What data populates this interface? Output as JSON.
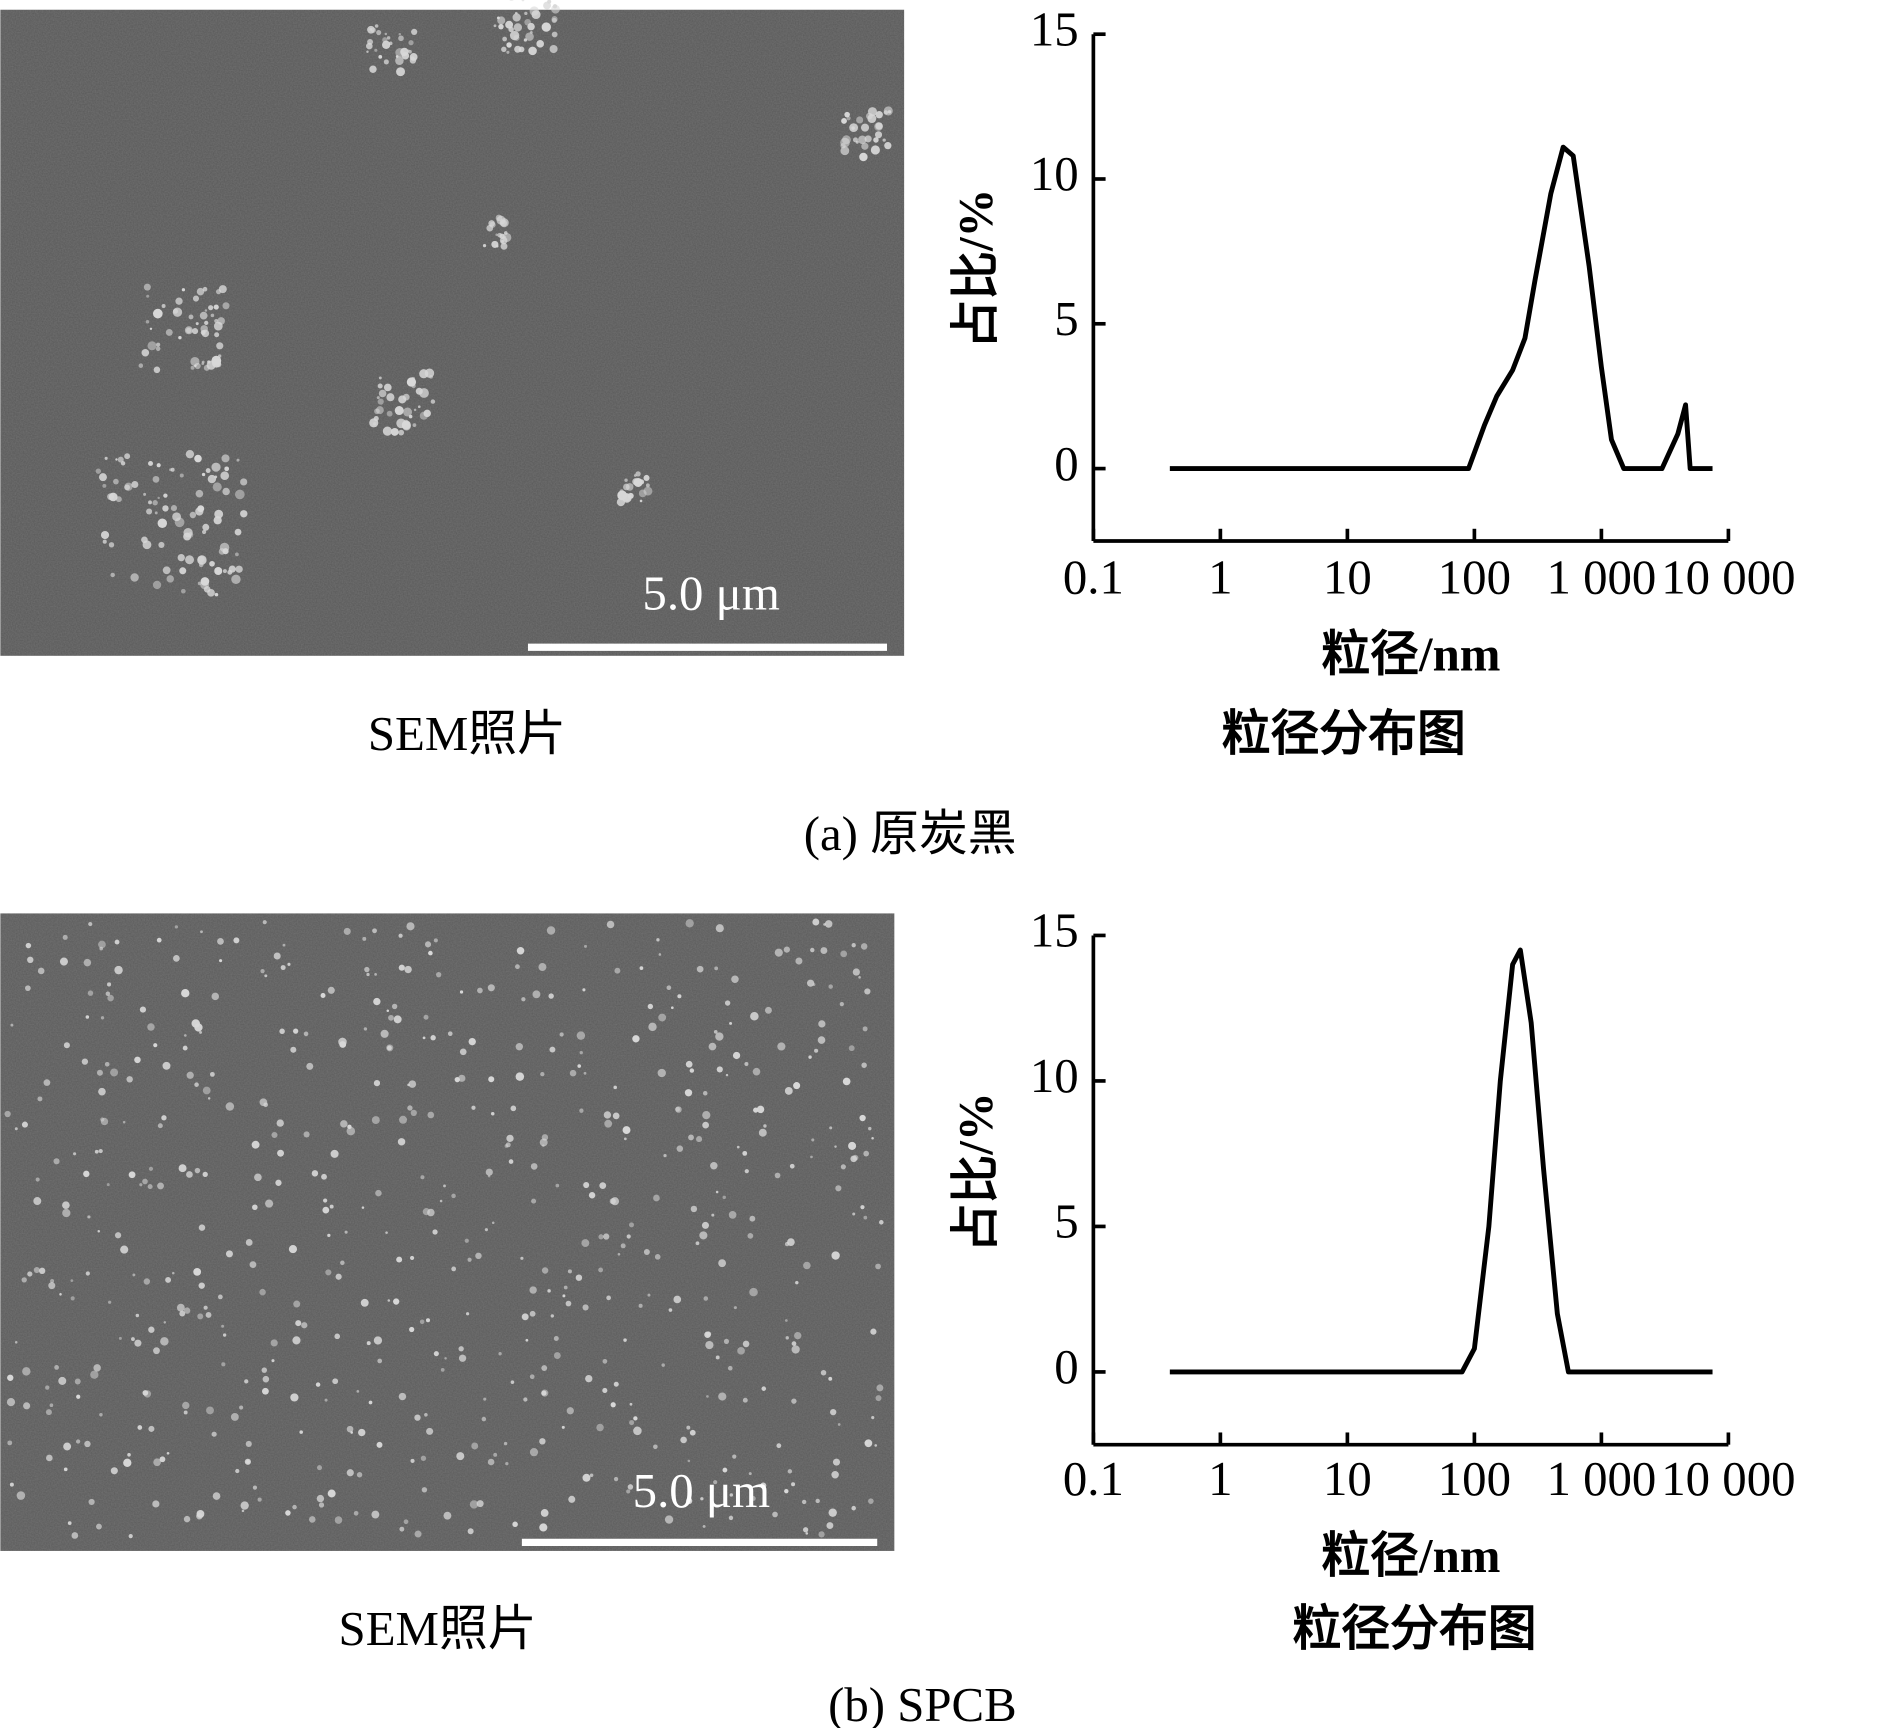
{
  "panels": [
    {
      "photo_caption": "SEM照片",
      "scale_bar": "5.0 μm",
      "chart_caption": "粒径分布图",
      "caption": "(a) 原炭黑"
    },
    {
      "photo_caption": "SEM照片",
      "scale_bar": "5.0 μm",
      "chart_caption": "粒径分布图",
      "caption": "(b) SPCB"
    }
  ],
  "chart_data": [
    {
      "type": "line",
      "x_label": "粒径/nm",
      "y_label": "占比/%",
      "x_scale": "log",
      "color": "#000000",
      "x": [
        0.4,
        90,
        120,
        150,
        200,
        250,
        300,
        400,
        500,
        600,
        800,
        1000,
        1200,
        1500,
        3000,
        4000,
        4600,
        5000,
        7500
      ],
      "values": [
        0,
        0,
        1.5,
        2.5,
        3.4,
        4.5,
        6.5,
        9.5,
        11.1,
        10.8,
        7,
        3.5,
        1,
        0,
        0,
        1.2,
        2.2,
        0,
        0
      ],
      "xlim": [
        0.1,
        10000
      ],
      "xticks": [
        0.1,
        1,
        10,
        100,
        {
          "value": 1000,
          "label": "1 000"
        },
        {
          "value": 10000,
          "label": "10 000"
        }
      ],
      "ylim": [
        -2.5,
        15
      ],
      "yticks": [
        0,
        5,
        10,
        15
      ]
    },
    {
      "type": "line",
      "x_label": "粒径/nm",
      "y_label": "占比/%",
      "x_scale": "log",
      "color": "#000000",
      "x": [
        0.4,
        80,
        100,
        130,
        160,
        200,
        230,
        280,
        350,
        450,
        550,
        7500
      ],
      "values": [
        0,
        0,
        0.8,
        5,
        10,
        14,
        14.5,
        12,
        7,
        2,
        0,
        0
      ],
      "xlim": [
        0.1,
        10000
      ],
      "xticks": [
        0.1,
        1,
        10,
        100,
        {
          "value": 1000,
          "label": "1 000"
        },
        {
          "value": 10000,
          "label": "10 000"
        }
      ],
      "ylim": [
        -2.5,
        15
      ],
      "yticks": [
        0,
        5,
        10,
        15
      ]
    }
  ]
}
